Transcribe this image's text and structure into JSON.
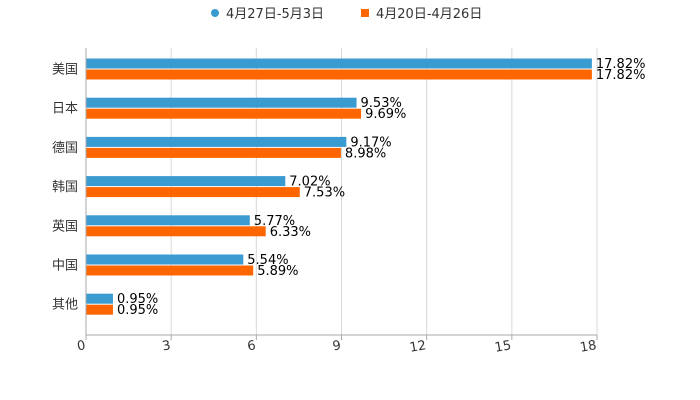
{
  "colors": {
    "series_1": "#3a9bd0",
    "series_2": "#ff6600",
    "grid": "#d8d8d8",
    "axis": "#aaaaaa",
    "text": "#333333",
    "label": "#000000"
  },
  "chart_data": {
    "type": "bar",
    "orientation": "horizontal",
    "categories": [
      "美国",
      "日本",
      "德国",
      "韩国",
      "英国",
      "中国",
      "其他"
    ],
    "series": [
      {
        "name": "4月27日-5月3日",
        "values": [
          17.82,
          9.53,
          9.17,
          7.02,
          5.77,
          5.54,
          0.95
        ],
        "labels": [
          "17.82%",
          "9.53%",
          "9.17%",
          "7.02%",
          "5.77%",
          "5.54%",
          "0.95%"
        ]
      },
      {
        "name": "4月20日-4月26日",
        "values": [
          17.82,
          9.69,
          8.98,
          7.53,
          6.33,
          5.89,
          0.95
        ],
        "labels": [
          "17.82%",
          "9.69%",
          "8.98%",
          "7.53%",
          "6.33%",
          "5.89%",
          "0.95%"
        ]
      }
    ],
    "xlim": [
      0,
      18
    ],
    "xticks": [
      0,
      3,
      6,
      9,
      12,
      15,
      18
    ],
    "xtick_labels": [
      "0",
      "3",
      "6",
      "9",
      "12",
      "15",
      "18"
    ],
    "grid": true,
    "legend": "top-center",
    "title": "",
    "xlabel": "",
    "ylabel": ""
  }
}
